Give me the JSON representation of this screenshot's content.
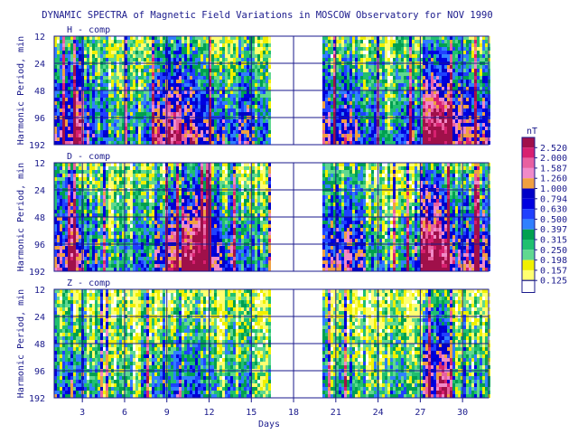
{
  "chart_data": {
    "type": "heatmap",
    "title": "DYNAMIC SPECTRA of Magnetic Field Variations in MOSCOW Observatory for NOV 1990",
    "xlabel": "Days",
    "ylabel": "Harmonic Period, min",
    "x_range": [
      1,
      31
    ],
    "x_ticks": [
      "3",
      "6",
      "9",
      "12",
      "15",
      "18",
      "21",
      "24",
      "27",
      "30"
    ],
    "x_tick_values": [
      3,
      6,
      9,
      12,
      15,
      18,
      21,
      24,
      27,
      30
    ],
    "y_scale": "log",
    "y_range": [
      12,
      192
    ],
    "y_ticks": [
      "12",
      "24",
      "48",
      "96",
      "192"
    ],
    "y_tick_values": [
      12,
      24,
      48,
      96,
      192
    ],
    "data_gap_days": [
      16.3,
      20.0
    ],
    "panels": [
      {
        "label": "H - comp",
        "activity": [
          0.55,
          0.75,
          0.5,
          0.35,
          0.3,
          0.3,
          0.45,
          0.7,
          0.8,
          0.75,
          0.6,
          0.55,
          0.45,
          0.5,
          0.4,
          0.3,
          0,
          0,
          0,
          0.55,
          0.6,
          0.5,
          0.35,
          0.3,
          0.35,
          0.45,
          0.95,
          1.0,
          0.6,
          0.7,
          0.65
        ]
      },
      {
        "label": "D - comp",
        "activity": [
          0.55,
          0.75,
          0.5,
          0.3,
          0.25,
          0.3,
          0.4,
          0.6,
          0.75,
          0.9,
          0.95,
          0.6,
          0.45,
          0.4,
          0.35,
          0.3,
          0,
          0,
          0,
          0.55,
          0.6,
          0.5,
          0.35,
          0.3,
          0.35,
          0.45,
          0.95,
          1.0,
          0.55,
          0.65,
          0.65
        ]
      },
      {
        "label": "Z - comp",
        "activity": [
          0.35,
          0.45,
          0.3,
          0.2,
          0.2,
          0.2,
          0.3,
          0.4,
          0.5,
          0.45,
          0.35,
          0.3,
          0.25,
          0.25,
          0.2,
          0.2,
          0,
          0,
          0,
          0.3,
          0.35,
          0.3,
          0.2,
          0.2,
          0.25,
          0.3,
          0.6,
          0.8,
          0.35,
          0.35,
          0.35
        ]
      }
    ],
    "colorbar": {
      "unit": "nT",
      "levels": [
        "2.520",
        "2.000",
        "1.587",
        "1.260",
        "1.000",
        "0.794",
        "0.630",
        "0.500",
        "0.397",
        "0.315",
        "0.250",
        "0.198",
        "0.157",
        "0.125"
      ],
      "colors": [
        "#a0104a",
        "#d82070",
        "#e860a0",
        "#f08ac8",
        "#f0a040",
        "#0000c8",
        "#0000e0",
        "#2040ff",
        "#3080ff",
        "#00a050",
        "#20c070",
        "#60d890",
        "#f0f000",
        "#ffff70"
      ],
      "low_color": "#ffffff"
    }
  }
}
